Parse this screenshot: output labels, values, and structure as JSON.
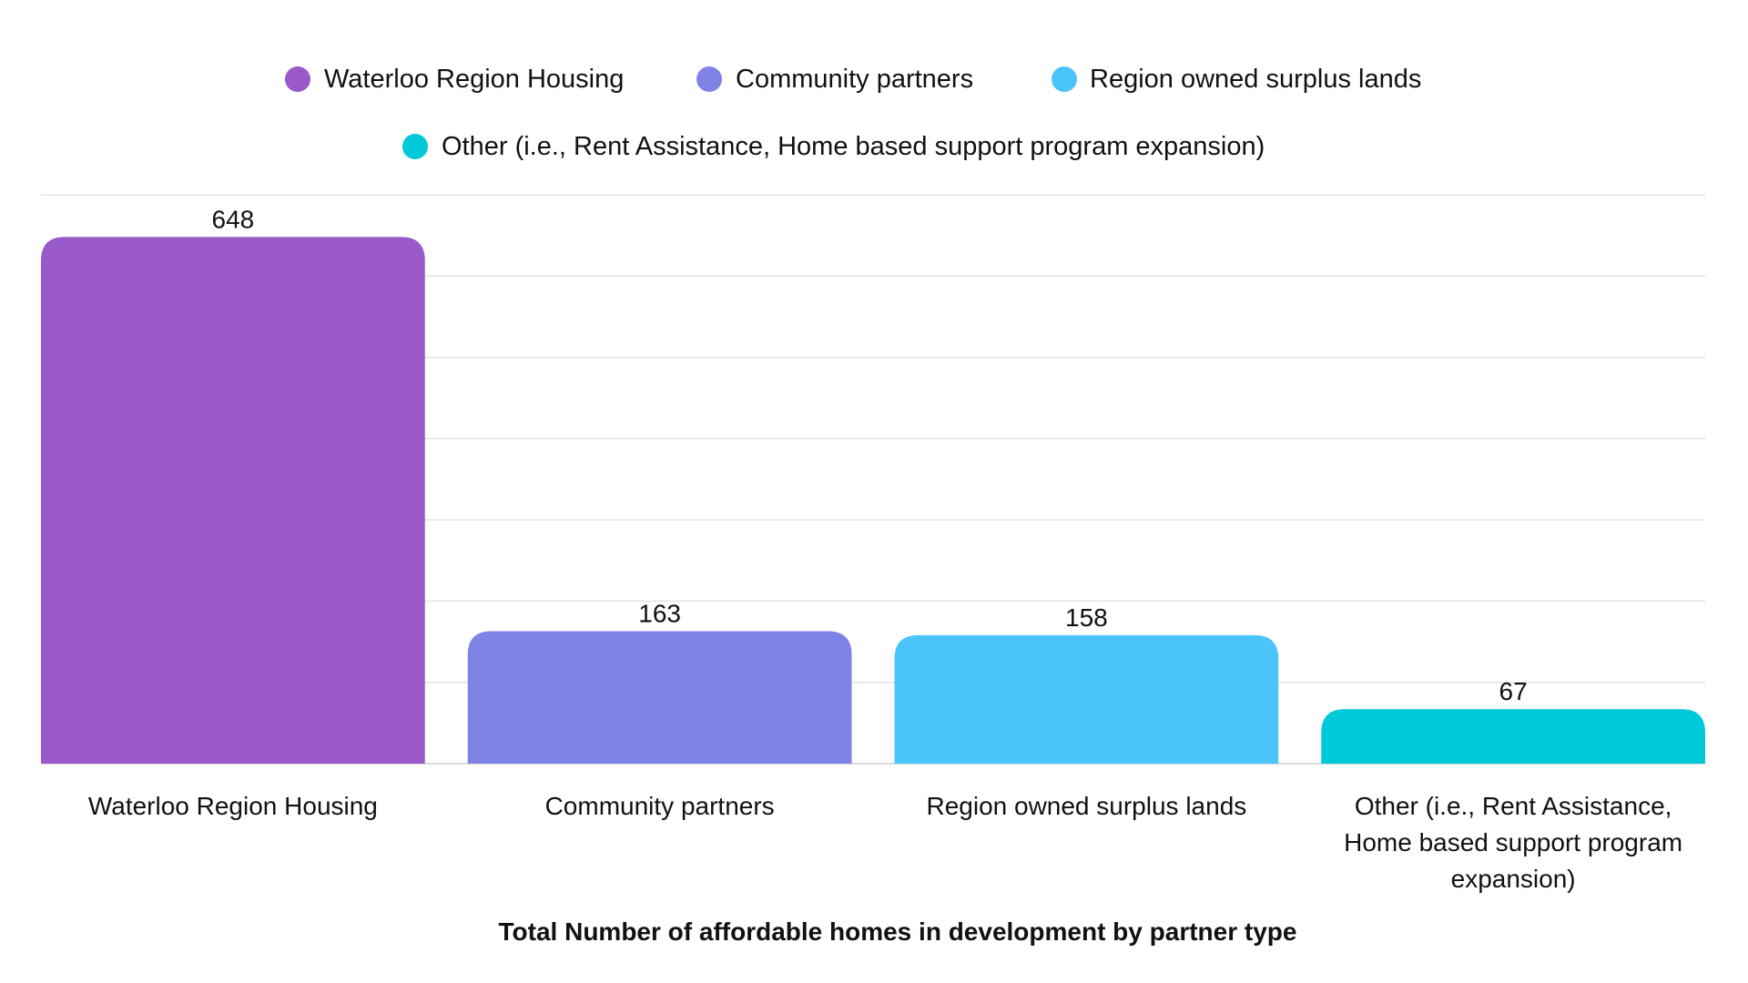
{
  "chart_data": {
    "type": "bar",
    "title": "Total Number of affordable homes in development by partner type",
    "xlabel": "",
    "ylabel": "",
    "ylim": [
      0,
      700
    ],
    "grid": true,
    "grid_step": 100,
    "legend_position": "top-center",
    "categories": [
      "Waterloo Region Housing",
      "Community partners",
      "Region owned surplus lands",
      "Other (i.e., Rent Assistance, Home based support program expansion)"
    ],
    "category_label_lines": [
      [
        "Waterloo Region Housing"
      ],
      [
        "Community partners"
      ],
      [
        "Region owned surplus lands"
      ],
      [
        "Other (i.e., Rent Assistance,",
        "Home based support program",
        "expansion)"
      ]
    ],
    "values": [
      648,
      163,
      158,
      67
    ],
    "colors": [
      "#9a59c9",
      "#7f83e6",
      "#4bc4fc",
      "#00c9d9"
    ],
    "legend": [
      "Waterloo Region Housing",
      "Community partners",
      "Region owned surplus lands",
      "Other (i.e., Rent Assistance, Home based support program expansion)"
    ]
  }
}
